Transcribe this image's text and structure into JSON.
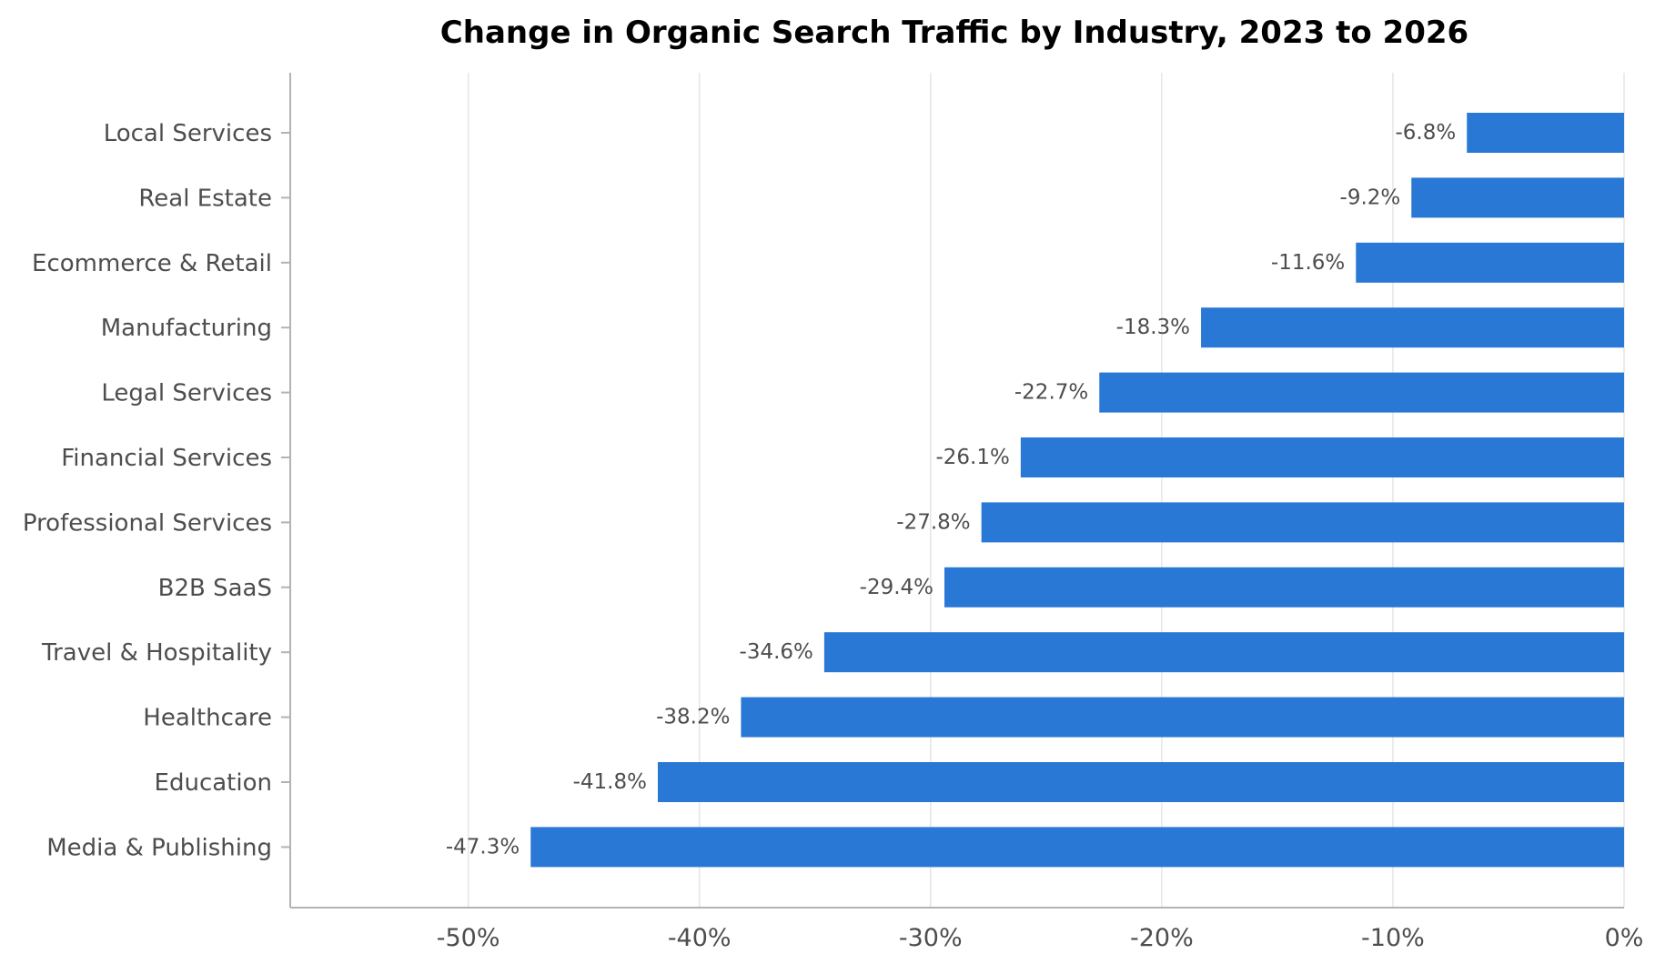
{
  "chart_data": {
    "type": "bar",
    "orientation": "horizontal",
    "title": "Change in Organic Search Traffic by Industry, 2023 to 2026",
    "xlabel": "",
    "ylabel": "",
    "categories": [
      "Local Services",
      "Real Estate",
      "Ecommerce & Retail",
      "Manufacturing",
      "Legal Services",
      "Financial Services",
      "Professional Services",
      "B2B SaaS",
      "Travel & Hospitality",
      "Healthcare",
      "Education",
      "Media & Publishing"
    ],
    "values": [
      -6.8,
      -9.2,
      -11.6,
      -18.3,
      -22.7,
      -26.1,
      -27.8,
      -29.4,
      -34.6,
      -38.2,
      -41.8,
      -47.3
    ],
    "data_labels": [
      "-6.8%",
      "-9.2%",
      "-11.6%",
      "-18.3%",
      "-22.7%",
      "-26.1%",
      "-27.8%",
      "-29.4%",
      "-34.6%",
      "-38.2%",
      "-41.8%",
      "-47.3%"
    ],
    "xticks": [
      -50,
      -40,
      -30,
      -20,
      -10,
      0
    ],
    "xtick_labels": [
      "-50%",
      "-40%",
      "-30%",
      "-20%",
      "-10%",
      "0%"
    ],
    "xlim": [
      -57.7,
      0
    ],
    "grid": "vertical",
    "legend": "none",
    "bar_color": "#2a78d5"
  }
}
